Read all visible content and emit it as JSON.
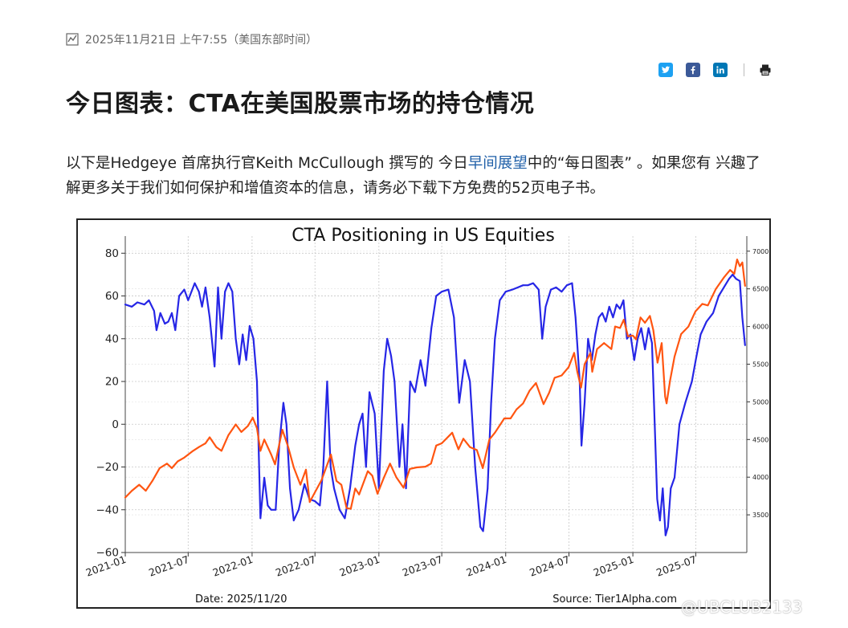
{
  "article": {
    "timestamp": "2025年11月21日 上午7:55（美国东部时间）",
    "title": "今日图表：CTA在美国股票市场的持仓情况",
    "intro_part1": "以下是Hedgeye 首席执行官Keith McCullough 撰写的 今日",
    "intro_link": "早间展望",
    "intro_part2": "中的“每日图表” 。如果您有 兴趣了解更多关于我们如何保护和增值资本的信息，请务必下载下方免费的52页电子书。"
  },
  "share": {
    "twitter_icon": "twitter-icon",
    "facebook_icon": "facebook-icon",
    "linkedin_icon": "linkedin-icon",
    "print_icon": "print-icon",
    "twitter_color": "#1da1f2",
    "facebook_color": "#3b5998",
    "linkedin_color": "#0077b5"
  },
  "watermark": "@UBCLUB2133",
  "chart_data": {
    "type": "line",
    "title": "CTA Positioning in US Equities",
    "date_label": "Date: 2025/11/20",
    "source_label": "Source: Tier1Alpha.com",
    "x_range": [
      "2021-01",
      "2025-11"
    ],
    "x_ticks": [
      "2021-01",
      "2021-07",
      "2022-01",
      "2022-07",
      "2023-01",
      "2023-07",
      "2024-01",
      "2024-07",
      "2025-01",
      "2025-07"
    ],
    "y_left_ticks": [
      80,
      60,
      40,
      20,
      0,
      -20,
      -40,
      -60
    ],
    "y_left_range": [
      -60,
      88
    ],
    "y_right_ticks": [
      7000,
      6500,
      6000,
      5500,
      5000,
      4500,
      4000,
      3500
    ],
    "y_right_range": [
      3000,
      7200
    ],
    "grid": true,
    "series": [
      {
        "axis": "left",
        "color": "#2626e6",
        "points": [
          [
            "2021-01-01",
            56
          ],
          [
            "2021-01-20",
            55
          ],
          [
            "2021-02-05",
            57
          ],
          [
            "2021-02-25",
            56
          ],
          [
            "2021-03-10",
            58
          ],
          [
            "2021-03-25",
            53
          ],
          [
            "2021-04-01",
            44
          ],
          [
            "2021-04-12",
            52
          ],
          [
            "2021-04-25",
            47
          ],
          [
            "2021-05-05",
            48
          ],
          [
            "2021-05-15",
            52
          ],
          [
            "2021-05-25",
            44
          ],
          [
            "2021-06-05",
            60
          ],
          [
            "2021-06-20",
            63
          ],
          [
            "2021-07-01",
            58
          ],
          [
            "2021-07-20",
            66
          ],
          [
            "2021-08-01",
            62
          ],
          [
            "2021-08-10",
            55
          ],
          [
            "2021-08-20",
            64
          ],
          [
            "2021-09-01",
            50
          ],
          [
            "2021-09-15",
            27
          ],
          [
            "2021-09-25",
            64
          ],
          [
            "2021-10-05",
            40
          ],
          [
            "2021-10-15",
            62
          ],
          [
            "2021-10-25",
            66
          ],
          [
            "2021-11-05",
            62
          ],
          [
            "2021-11-15",
            40
          ],
          [
            "2021-11-25",
            28
          ],
          [
            "2021-12-05",
            42
          ],
          [
            "2021-12-15",
            30
          ],
          [
            "2021-12-25",
            46
          ],
          [
            "2022-01-05",
            40
          ],
          [
            "2022-01-15",
            20
          ],
          [
            "2022-01-25",
            -44
          ],
          [
            "2022-02-05",
            -25
          ],
          [
            "2022-02-15",
            -38
          ],
          [
            "2022-02-25",
            -40
          ],
          [
            "2022-03-10",
            -40
          ],
          [
            "2022-03-20",
            -10
          ],
          [
            "2022-04-01",
            10
          ],
          [
            "2022-04-10",
            0
          ],
          [
            "2022-04-20",
            -30
          ],
          [
            "2022-05-01",
            -45
          ],
          [
            "2022-05-15",
            -40
          ],
          [
            "2022-06-01",
            -28
          ],
          [
            "2022-06-15",
            -35
          ],
          [
            "2022-07-01",
            -36
          ],
          [
            "2022-07-15",
            -38
          ],
          [
            "2022-07-25",
            -20
          ],
          [
            "2022-08-05",
            20
          ],
          [
            "2022-08-15",
            -20
          ],
          [
            "2022-08-25",
            -30
          ],
          [
            "2022-09-10",
            -40
          ],
          [
            "2022-09-25",
            -44
          ],
          [
            "2022-10-10",
            -30
          ],
          [
            "2022-10-25",
            -10
          ],
          [
            "2022-11-05",
            0
          ],
          [
            "2022-11-15",
            5
          ],
          [
            "2022-11-25",
            -20
          ],
          [
            "2022-12-05",
            15
          ],
          [
            "2022-12-20",
            5
          ],
          [
            "2023-01-01",
            -30
          ],
          [
            "2023-01-15",
            25
          ],
          [
            "2023-01-25",
            40
          ],
          [
            "2023-02-05",
            32
          ],
          [
            "2023-02-15",
            20
          ],
          [
            "2023-03-01",
            -20
          ],
          [
            "2023-03-10",
            0
          ],
          [
            "2023-03-20",
            -30
          ],
          [
            "2023-04-01",
            20
          ],
          [
            "2023-04-15",
            15
          ],
          [
            "2023-05-01",
            30
          ],
          [
            "2023-05-15",
            18
          ],
          [
            "2023-06-01",
            45
          ],
          [
            "2023-06-15",
            60
          ],
          [
            "2023-07-01",
            62
          ],
          [
            "2023-07-20",
            63
          ],
          [
            "2023-08-05",
            50
          ],
          [
            "2023-08-20",
            10
          ],
          [
            "2023-09-05",
            30
          ],
          [
            "2023-09-20",
            20
          ],
          [
            "2023-10-05",
            -20
          ],
          [
            "2023-10-20",
            -48
          ],
          [
            "2023-10-28",
            -50
          ],
          [
            "2023-11-10",
            -30
          ],
          [
            "2023-11-20",
            10
          ],
          [
            "2023-12-01",
            40
          ],
          [
            "2023-12-15",
            58
          ],
          [
            "2024-01-01",
            62
          ],
          [
            "2024-01-20",
            63
          ],
          [
            "2024-02-05",
            64
          ],
          [
            "2024-02-20",
            65
          ],
          [
            "2024-03-05",
            65
          ],
          [
            "2024-03-20",
            66
          ],
          [
            "2024-04-05",
            63
          ],
          [
            "2024-04-15",
            40
          ],
          [
            "2024-04-25",
            55
          ],
          [
            "2024-05-10",
            63
          ],
          [
            "2024-05-25",
            64
          ],
          [
            "2024-06-10",
            62
          ],
          [
            "2024-06-25",
            65
          ],
          [
            "2024-07-10",
            66
          ],
          [
            "2024-07-20",
            50
          ],
          [
            "2024-08-01",
            20
          ],
          [
            "2024-08-06",
            -10
          ],
          [
            "2024-08-15",
            10
          ],
          [
            "2024-08-25",
            40
          ],
          [
            "2024-09-05",
            30
          ],
          [
            "2024-09-15",
            42
          ],
          [
            "2024-09-25",
            50
          ],
          [
            "2024-10-05",
            52
          ],
          [
            "2024-10-15",
            48
          ],
          [
            "2024-10-25",
            55
          ],
          [
            "2024-11-05",
            50
          ],
          [
            "2024-11-15",
            56
          ],
          [
            "2024-11-25",
            54
          ],
          [
            "2024-12-05",
            58
          ],
          [
            "2024-12-15",
            40
          ],
          [
            "2024-12-25",
            42
          ],
          [
            "2025-01-05",
            30
          ],
          [
            "2025-01-15",
            40
          ],
          [
            "2025-01-25",
            45
          ],
          [
            "2025-02-05",
            35
          ],
          [
            "2025-02-15",
            45
          ],
          [
            "2025-02-25",
            38
          ],
          [
            "2025-03-05",
            0
          ],
          [
            "2025-03-12",
            -35
          ],
          [
            "2025-03-20",
            -45
          ],
          [
            "2025-03-28",
            -30
          ],
          [
            "2025-04-05",
            -52
          ],
          [
            "2025-04-12",
            -48
          ],
          [
            "2025-04-20",
            -30
          ],
          [
            "2025-05-01",
            -25
          ],
          [
            "2025-05-15",
            0
          ],
          [
            "2025-06-01",
            10
          ],
          [
            "2025-06-20",
            20
          ],
          [
            "2025-07-01",
            30
          ],
          [
            "2025-07-15",
            42
          ],
          [
            "2025-08-01",
            48
          ],
          [
            "2025-08-20",
            52
          ],
          [
            "2025-09-05",
            60
          ],
          [
            "2025-09-20",
            64
          ],
          [
            "2025-10-05",
            68
          ],
          [
            "2025-10-15",
            70
          ],
          [
            "2025-10-25",
            68
          ],
          [
            "2025-11-05",
            67
          ],
          [
            "2025-11-12",
            50
          ],
          [
            "2025-11-20",
            37
          ]
        ]
      },
      {
        "axis": "right",
        "color": "#ff5511",
        "points": [
          [
            "2021-01-01",
            3730
          ],
          [
            "2021-01-20",
            3820
          ],
          [
            "2021-02-10",
            3900
          ],
          [
            "2021-03-01",
            3820
          ],
          [
            "2021-03-20",
            3950
          ],
          [
            "2021-04-10",
            4120
          ],
          [
            "2021-05-01",
            4180
          ],
          [
            "2021-05-15",
            4120
          ],
          [
            "2021-06-01",
            4210
          ],
          [
            "2021-06-20",
            4260
          ],
          [
            "2021-07-15",
            4350
          ],
          [
            "2021-08-01",
            4400
          ],
          [
            "2021-08-20",
            4450
          ],
          [
            "2021-09-01",
            4530
          ],
          [
            "2021-09-20",
            4400
          ],
          [
            "2021-10-05",
            4350
          ],
          [
            "2021-10-25",
            4560
          ],
          [
            "2021-11-15",
            4700
          ],
          [
            "2021-12-01",
            4600
          ],
          [
            "2021-12-20",
            4680
          ],
          [
            "2022-01-03",
            4790
          ],
          [
            "2022-01-15",
            4650
          ],
          [
            "2022-01-25",
            4350
          ],
          [
            "2022-02-05",
            4500
          ],
          [
            "2022-02-25",
            4300
          ],
          [
            "2022-03-08",
            4170
          ],
          [
            "2022-03-29",
            4630
          ],
          [
            "2022-04-15",
            4400
          ],
          [
            "2022-05-01",
            4130
          ],
          [
            "2022-05-20",
            3900
          ],
          [
            "2022-06-05",
            4100
          ],
          [
            "2022-06-16",
            3670
          ],
          [
            "2022-07-01",
            3800
          ],
          [
            "2022-07-20",
            3960
          ],
          [
            "2022-08-16",
            4300
          ],
          [
            "2022-09-01",
            3950
          ],
          [
            "2022-09-15",
            3900
          ],
          [
            "2022-09-30",
            3590
          ],
          [
            "2022-10-12",
            3580
          ],
          [
            "2022-10-25",
            3850
          ],
          [
            "2022-11-05",
            3770
          ],
          [
            "2022-11-30",
            4080
          ],
          [
            "2022-12-13",
            4020
          ],
          [
            "2022-12-28",
            3780
          ],
          [
            "2023-01-15",
            3990
          ],
          [
            "2023-02-02",
            4180
          ],
          [
            "2023-02-20",
            4000
          ],
          [
            "2023-03-13",
            3860
          ],
          [
            "2023-03-31",
            4110
          ],
          [
            "2023-04-20",
            4130
          ],
          [
            "2023-05-15",
            4140
          ],
          [
            "2023-05-31",
            4180
          ],
          [
            "2023-06-15",
            4420
          ],
          [
            "2023-07-01",
            4450
          ],
          [
            "2023-07-31",
            4590
          ],
          [
            "2023-08-18",
            4370
          ],
          [
            "2023-09-01",
            4510
          ],
          [
            "2023-09-20",
            4400
          ],
          [
            "2023-10-10",
            4360
          ],
          [
            "2023-10-27",
            4120
          ],
          [
            "2023-11-15",
            4500
          ],
          [
            "2023-12-01",
            4590
          ],
          [
            "2023-12-28",
            4780
          ],
          [
            "2024-01-15",
            4780
          ],
          [
            "2024-02-01",
            4900
          ],
          [
            "2024-02-20",
            4980
          ],
          [
            "2024-03-10",
            5150
          ],
          [
            "2024-03-28",
            5250
          ],
          [
            "2024-04-19",
            4970
          ],
          [
            "2024-05-05",
            5120
          ],
          [
            "2024-05-21",
            5320
          ],
          [
            "2024-06-10",
            5350
          ],
          [
            "2024-06-30",
            5460
          ],
          [
            "2024-07-16",
            5650
          ],
          [
            "2024-07-25",
            5400
          ],
          [
            "2024-08-05",
            5190
          ],
          [
            "2024-08-15",
            5500
          ],
          [
            "2024-09-01",
            5650
          ],
          [
            "2024-09-06",
            5400
          ],
          [
            "2024-09-20",
            5700
          ],
          [
            "2024-10-10",
            5780
          ],
          [
            "2024-10-31",
            5700
          ],
          [
            "2024-11-11",
            6000
          ],
          [
            "2024-11-25",
            5980
          ],
          [
            "2024-12-06",
            6090
          ],
          [
            "2024-12-18",
            5870
          ],
          [
            "2025-01-01",
            5880
          ],
          [
            "2025-01-10",
            5830
          ],
          [
            "2025-01-23",
            6120
          ],
          [
            "2025-02-05",
            6050
          ],
          [
            "2025-02-19",
            6140
          ],
          [
            "2025-03-01",
            5950
          ],
          [
            "2025-03-13",
            5520
          ],
          [
            "2025-03-25",
            5780
          ],
          [
            "2025-04-04",
            5070
          ],
          [
            "2025-04-08",
            4980
          ],
          [
            "2025-04-18",
            5280
          ],
          [
            "2025-05-01",
            5600
          ],
          [
            "2025-05-20",
            5900
          ],
          [
            "2025-06-10",
            6000
          ],
          [
            "2025-06-30",
            6200
          ],
          [
            "2025-07-20",
            6300
          ],
          [
            "2025-08-05",
            6280
          ],
          [
            "2025-08-28",
            6500
          ],
          [
            "2025-09-20",
            6650
          ],
          [
            "2025-10-08",
            6750
          ],
          [
            "2025-10-20",
            6700
          ],
          [
            "2025-10-28",
            6890
          ],
          [
            "2025-11-05",
            6800
          ],
          [
            "2025-11-12",
            6850
          ],
          [
            "2025-11-20",
            6540
          ]
        ]
      }
    ]
  }
}
